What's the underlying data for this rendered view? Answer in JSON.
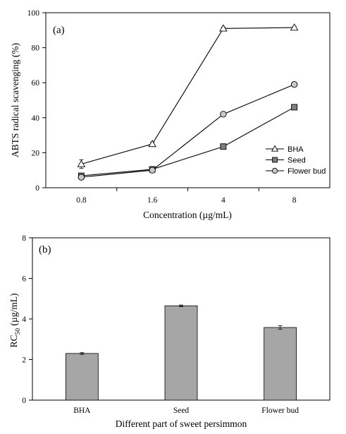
{
  "chart_data": [
    {
      "panel_label": "(a)",
      "type": "line",
      "categories": [
        "0.8",
        "1.6",
        "4",
        "8"
      ],
      "xlabel": "Concentration (µg/mL)",
      "ylabel": "ABTS radical scavenging (%)",
      "ylim": [
        0,
        100
      ],
      "yticks": [
        "0",
        "20",
        "40",
        "60",
        "80",
        "100"
      ],
      "legend_position": "bottom-right",
      "series": [
        {
          "name": "BHA",
          "marker": "triangle",
          "values": [
            13.5,
            25,
            91,
            91.5
          ],
          "errors": [
            2.5,
            1,
            0.8,
            0.6
          ]
        },
        {
          "name": "Seed",
          "marker": "square",
          "values": [
            6.8,
            10.5,
            23.5,
            46
          ],
          "errors": [
            0.8,
            0.6,
            0.5,
            0.6
          ]
        },
        {
          "name": "Flower bud",
          "marker": "circle",
          "values": [
            6,
            10,
            42,
            59
          ],
          "errors": [
            0.8,
            0.5,
            0.8,
            0.6
          ]
        }
      ]
    },
    {
      "panel_label": "(b)",
      "type": "bar",
      "categories": [
        "BHA",
        "Seed",
        "Flower bud"
      ],
      "values": [
        2.3,
        4.65,
        3.58
      ],
      "errors": [
        0.04,
        0.04,
        0.09
      ],
      "xlabel": "Different part of sweet persimmon",
      "ylabel_main": "RC",
      "ylabel_sub": "50",
      "ylabel_rest": " (µg/mL)",
      "ylim": [
        0,
        8
      ],
      "yticks": [
        "0",
        "2",
        "4",
        "6",
        "8"
      ],
      "bar_color": "#a6a6a6"
    }
  ]
}
